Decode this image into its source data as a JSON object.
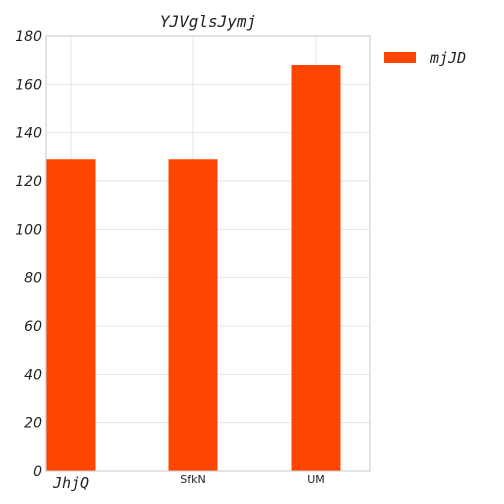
{
  "chart_data": {
    "type": "bar",
    "title": "YJVglsJymj",
    "xlabel": "",
    "ylabel": "",
    "categories": [
      "JhjQ",
      "SfkN",
      "UM"
    ],
    "series": [
      {
        "name": "mjJD",
        "values": [
          129,
          129,
          168
        ],
        "color": "#ff4500"
      }
    ],
    "ylim": [
      0,
      180
    ],
    "yticks": [
      0,
      20,
      40,
      60,
      80,
      100,
      120,
      140,
      160,
      180
    ],
    "grid": true,
    "legend": "top-right-outside"
  }
}
